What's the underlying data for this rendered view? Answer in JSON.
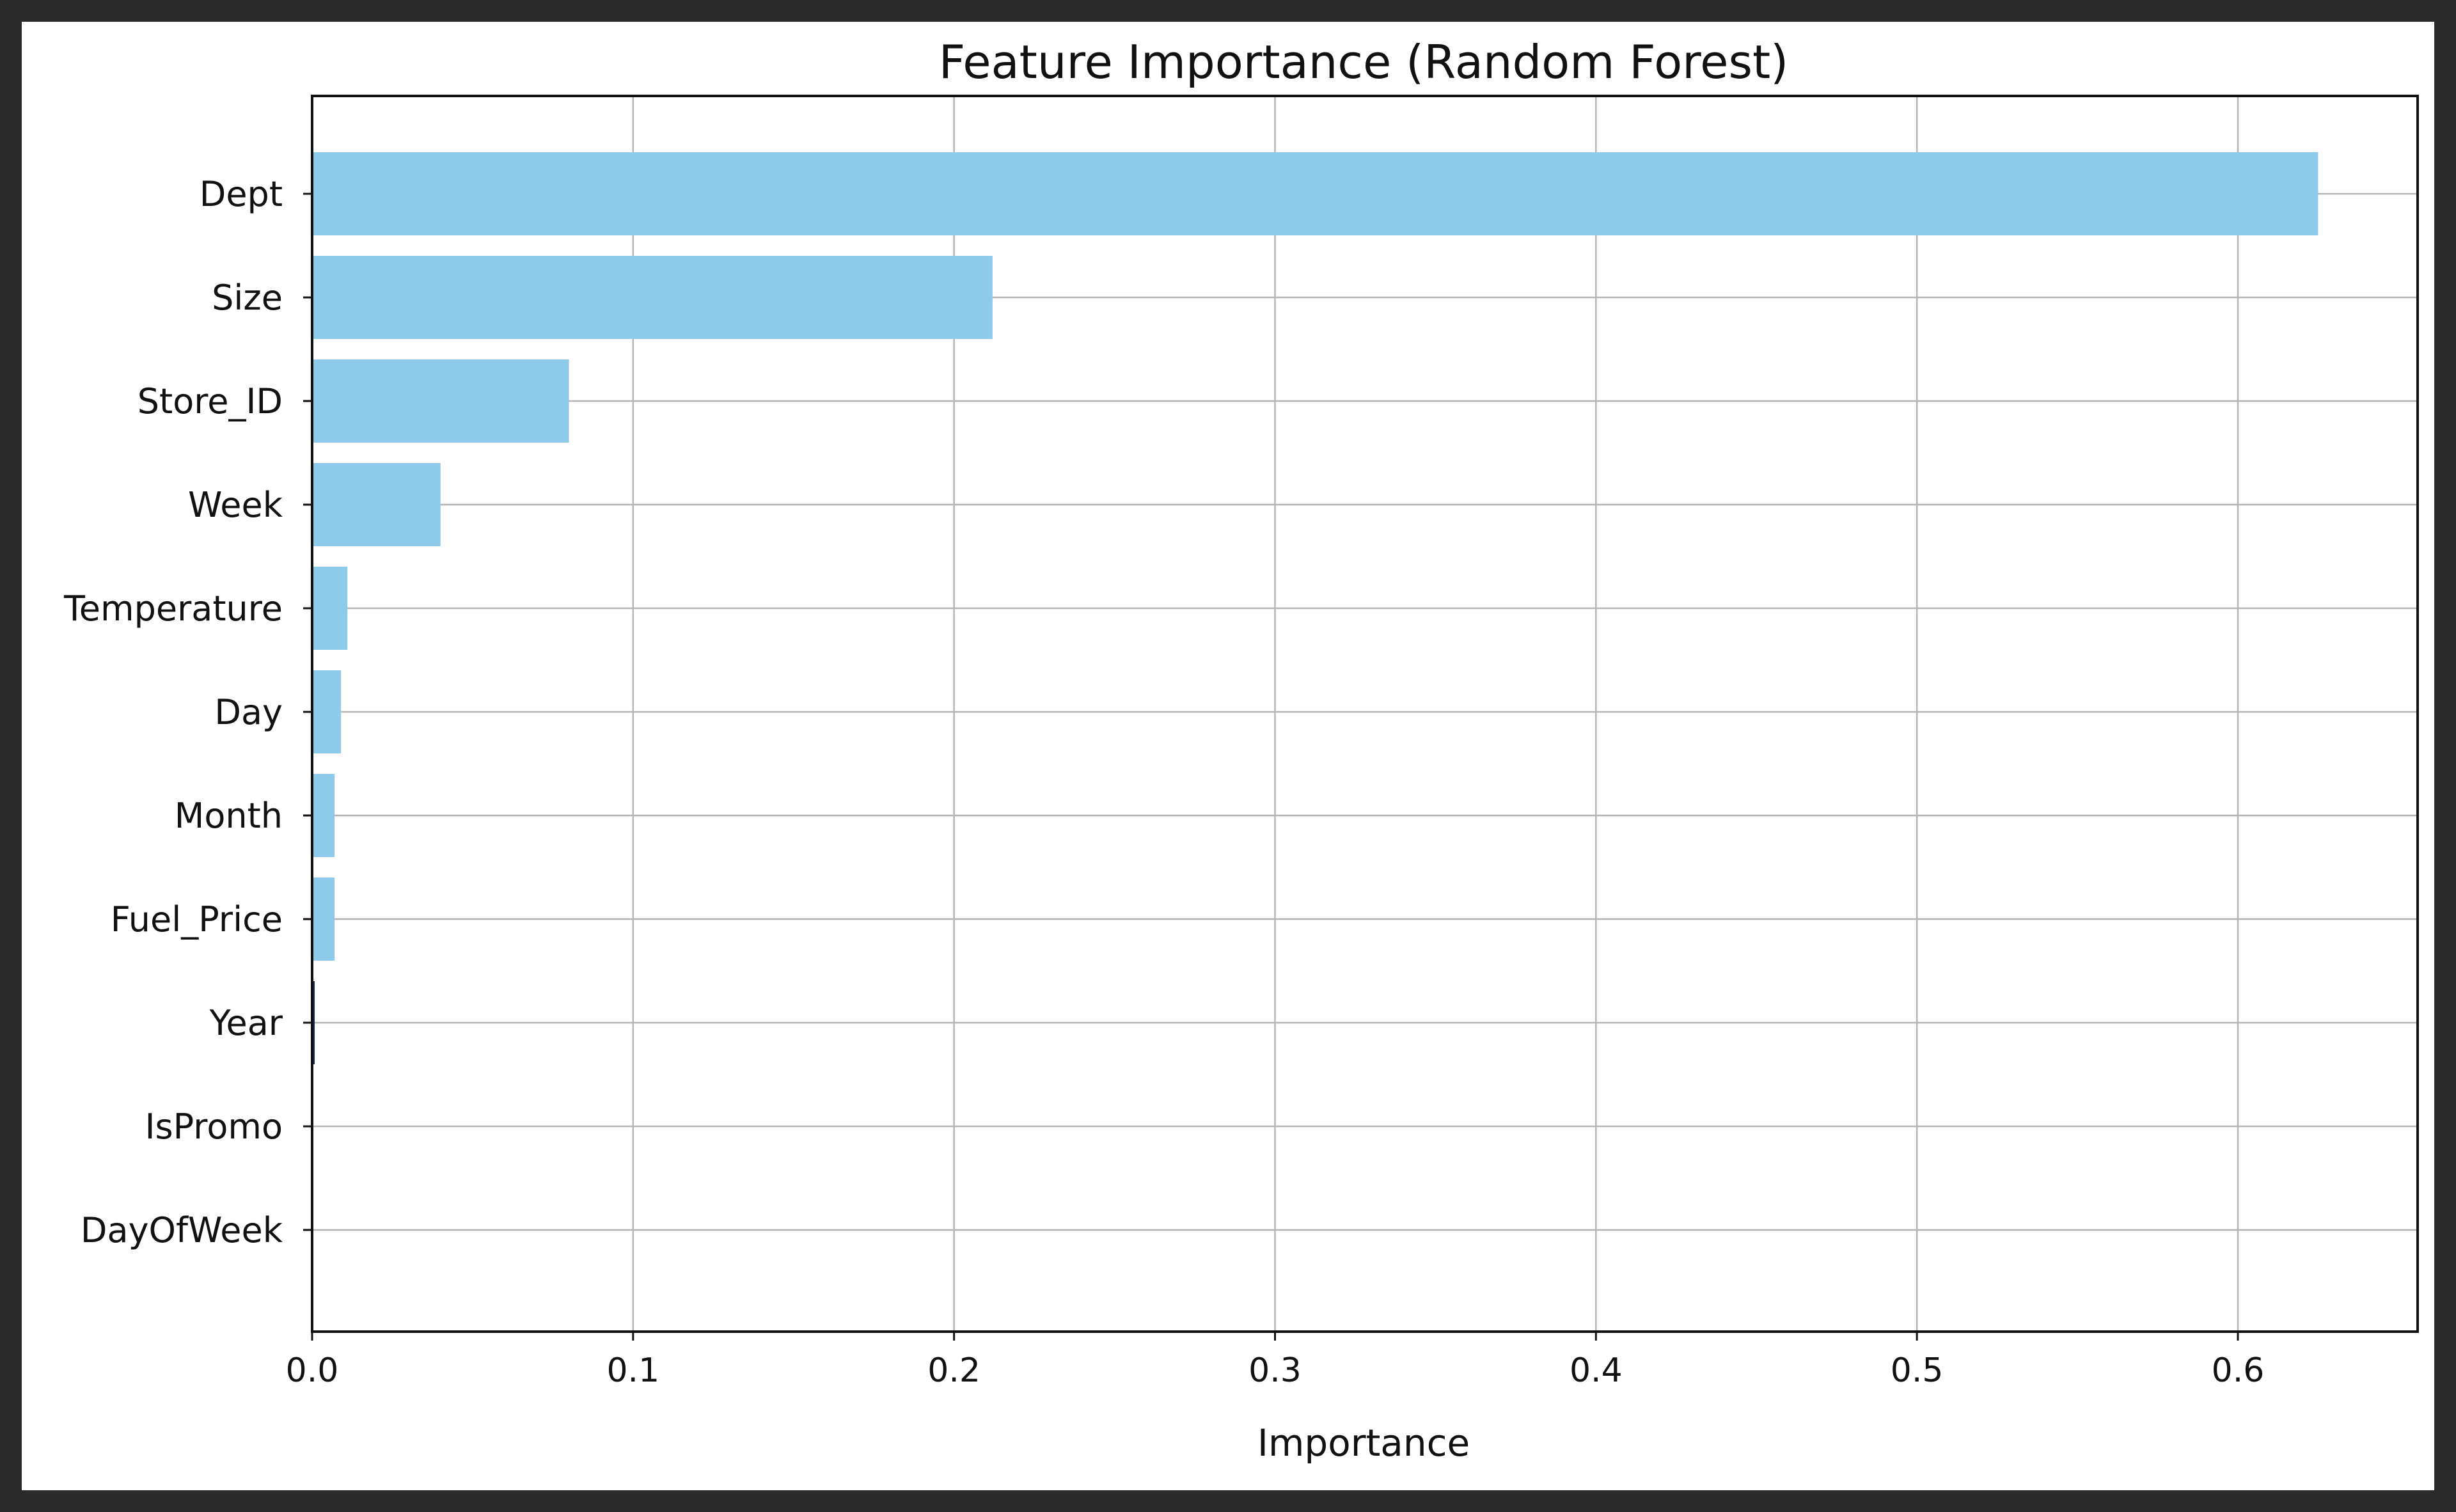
{
  "chart_data": {
    "type": "bar",
    "orientation": "horizontal",
    "title": "Feature Importance (Random Forest)",
    "xlabel": "Importance",
    "ylabel": "",
    "categories": [
      "Dept",
      "Size",
      "Store_ID",
      "Week",
      "Temperature",
      "Day",
      "Month",
      "Fuel_Price",
      "Year",
      "IsPromo",
      "DayOfWeek"
    ],
    "values": [
      0.625,
      0.212,
      0.08,
      0.04,
      0.011,
      0.009,
      0.007,
      0.007,
      0.0005,
      0.0,
      0.0
    ],
    "xlim": [
      0,
      0.656
    ],
    "xticks": [
      "0.0",
      "0.1",
      "0.2",
      "0.3",
      "0.4",
      "0.5",
      "0.6"
    ],
    "grid": true,
    "colors": {
      "bar": "#8ecbea",
      "grid": "#b5b5b5",
      "axis": "#111111",
      "background": "#ffffff",
      "frame": "#2a2a2a"
    }
  }
}
